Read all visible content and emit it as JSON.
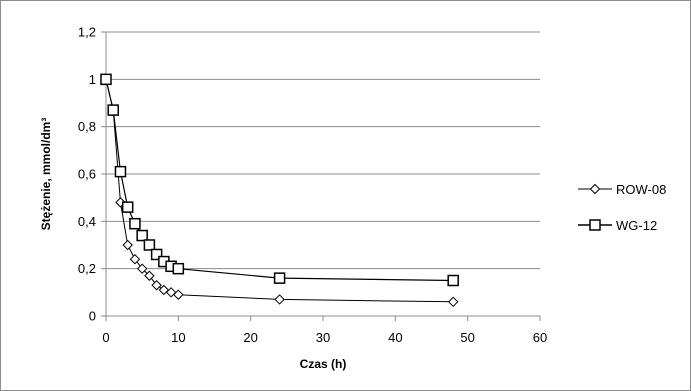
{
  "chart_data": {
    "type": "line",
    "title": "",
    "xlabel": "Czas (h)",
    "ylabel": "Stężenie, mmol/dm³",
    "xlim": [
      0,
      60
    ],
    "ylim": [
      0,
      1.2
    ],
    "x_ticks": [
      0,
      10,
      20,
      30,
      40,
      50,
      60
    ],
    "x_tick_labels": [
      "0",
      "10",
      "20",
      "30",
      "40",
      "50",
      "60"
    ],
    "y_ticks": [
      0,
      0.2,
      0.4,
      0.6,
      0.8,
      1.0,
      1.2
    ],
    "y_tick_labels": [
      "0",
      "0,2",
      "0,4",
      "0,6",
      "0,8",
      "1",
      "1,2"
    ],
    "grid": "horizontal",
    "legend_position": "right",
    "series": [
      {
        "name": "ROW-08",
        "marker": "diamond",
        "color": "#000000",
        "x": [
          0,
          1,
          2,
          3,
          4,
          5,
          6,
          7,
          8,
          9,
          10,
          24,
          48
        ],
        "y": [
          1.0,
          0.87,
          0.48,
          0.3,
          0.24,
          0.2,
          0.17,
          0.13,
          0.11,
          0.1,
          0.09,
          0.07,
          0.06
        ]
      },
      {
        "name": "WG-12",
        "marker": "square",
        "color": "#000000",
        "x": [
          0,
          1,
          2,
          3,
          4,
          5,
          6,
          7,
          8,
          9,
          10,
          24,
          48
        ],
        "y": [
          1.0,
          0.87,
          0.61,
          0.46,
          0.39,
          0.34,
          0.3,
          0.26,
          0.23,
          0.21,
          0.2,
          0.16,
          0.15
        ]
      }
    ]
  }
}
